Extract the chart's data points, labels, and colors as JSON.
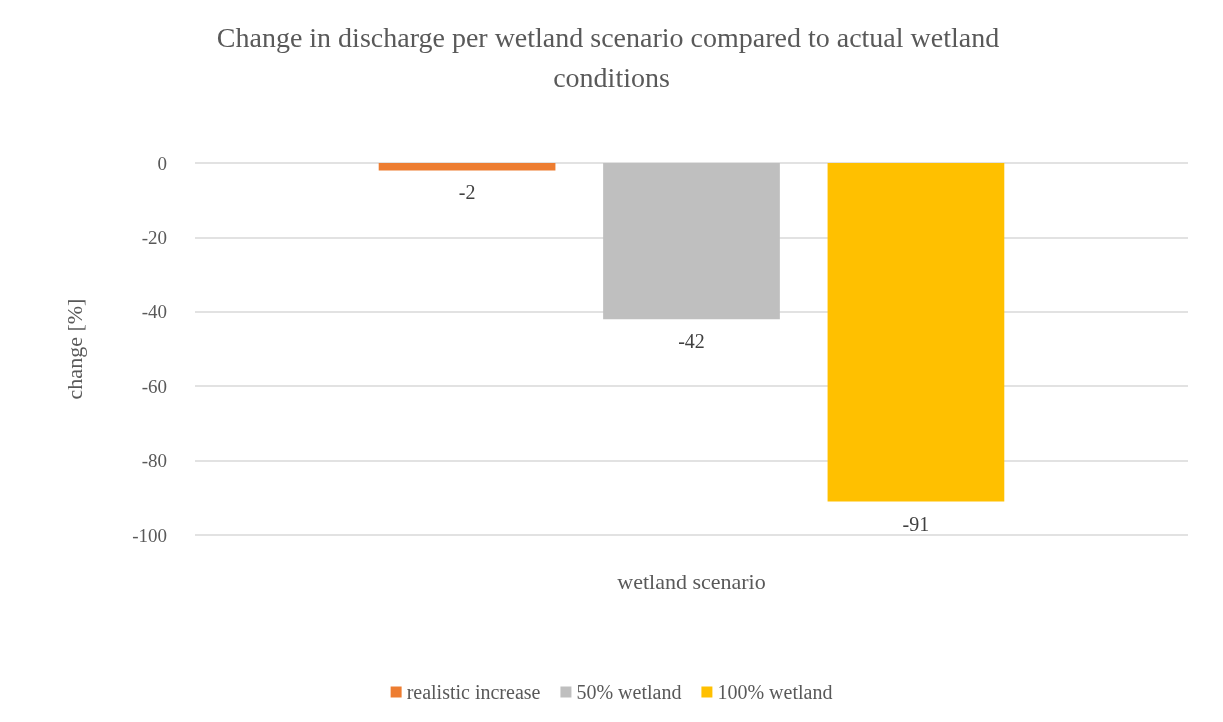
{
  "chart_data": {
    "type": "bar",
    "title": "Change in discharge per wetland scenario compared to actual wetland conditions",
    "xlabel": "wetland scenario",
    "ylabel": "change [%]",
    "categories": [
      null
    ],
    "series": [
      {
        "name": "realistic increase",
        "color": "#ed7d31",
        "values": [
          -2
        ]
      },
      {
        "name": "50% wetland",
        "color": "#bfbfbf",
        "values": [
          -42
        ]
      },
      {
        "name": "100% wetland",
        "color": "#ffc000",
        "values": [
          -91
        ]
      }
    ],
    "ylim": [
      -100,
      0
    ],
    "yticks": [
      0,
      -20,
      -40,
      -60,
      -80,
      -100
    ],
    "grid": "y",
    "legend": "bottom",
    "data_labels": true
  }
}
